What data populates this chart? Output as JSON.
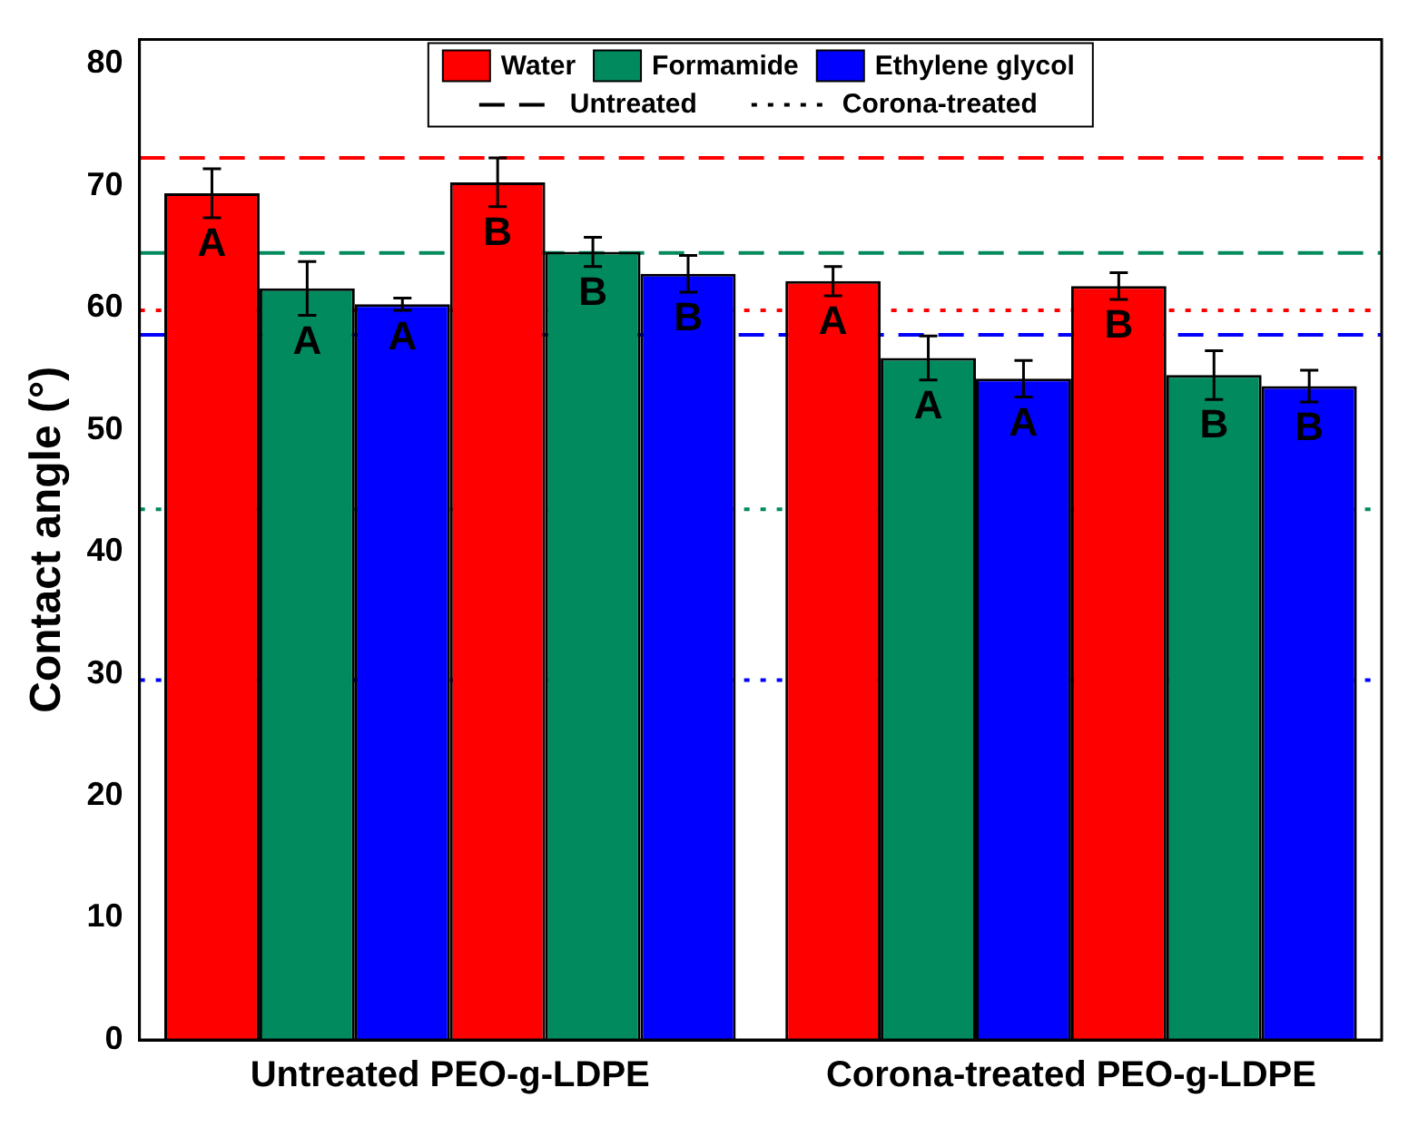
{
  "chart_data": {
    "type": "bar",
    "ylabel": "Contact angle (°)",
    "categories": [
      "Untreated PEO-g-LDPE",
      "Corona-treated PEO-g-LDPE"
    ],
    "series": [
      {
        "name": "Water",
        "color": "#ff0000",
        "values": [
          69.4,
          62.2
        ],
        "errors": [
          2.0,
          1.2
        ],
        "value_labels": [
          "A",
          "A"
        ]
      },
      {
        "name": "Formamide",
        "color": "#008a5e",
        "values": [
          61.6,
          55.9
        ],
        "errors": [
          2.2,
          1.8
        ],
        "value_labels": [
          "A",
          "A"
        ]
      },
      {
        "name": "Ethylene glycol",
        "color": "#0000ff",
        "values": [
          60.3,
          54.2
        ],
        "errors": [
          0.5,
          1.5
        ],
        "value_labels": [
          "A",
          "A"
        ]
      },
      {
        "color": "#ff0000",
        "values": [
          70.3,
          61.8
        ],
        "errors": [
          2.0,
          1.1
        ],
        "value_labels": [
          "B",
          "B"
        ]
      },
      {
        "color": "#008a5e",
        "values": [
          64.6,
          54.5
        ],
        "errors": [
          1.2,
          2.0
        ],
        "value_labels": [
          "B",
          "B"
        ]
      },
      {
        "color": "#0000ff",
        "values": [
          62.8,
          53.6
        ],
        "errors": [
          1.5,
          1.3
        ],
        "value_labels": [
          "B",
          "B"
        ]
      }
    ],
    "ref_lines": [
      {
        "axis": "y",
        "value": 72.3,
        "color": "#ff0000",
        "line_style": "dashed"
      },
      {
        "axis": "y",
        "value": 64.5,
        "color": "#008a5e",
        "line_style": "dashed"
      },
      {
        "axis": "y",
        "value": 57.8,
        "color": "#0000ff",
        "line_style": "dashed"
      },
      {
        "axis": "y",
        "value": 59.8,
        "color": "#ff0000",
        "line_style": "dotted"
      },
      {
        "axis": "y",
        "value": 43.5,
        "color": "#008a5e",
        "line_style": "dotted"
      },
      {
        "axis": "y",
        "value": 29.5,
        "color": "#0000ff",
        "line_style": "dotted"
      }
    ],
    "annotations": [
      "Untreated",
      "Corona-treated"
    ],
    "ylim": [
      0,
      82
    ],
    "yticks": [
      0,
      10,
      20,
      30,
      40,
      50,
      60,
      70,
      80
    ],
    "grid": false,
    "legend": "top"
  }
}
